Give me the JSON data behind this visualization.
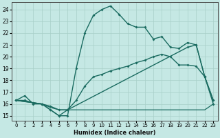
{
  "xlabel": "Humidex (Indice chaleur)",
  "xlim": [
    -0.5,
    23.5
  ],
  "ylim": [
    14.6,
    24.6
  ],
  "xticks": [
    0,
    1,
    2,
    3,
    4,
    5,
    6,
    7,
    8,
    9,
    10,
    11,
    12,
    13,
    14,
    15,
    16,
    17,
    18,
    19,
    20,
    21,
    22,
    23
  ],
  "yticks": [
    15,
    16,
    17,
    18,
    19,
    20,
    21,
    22,
    23,
    24
  ],
  "bg_color": "#c5e8e4",
  "grid_color": "#a8cfc8",
  "line_color": "#1a6b60",
  "series": [
    {
      "x": [
        0,
        1,
        2,
        3,
        4,
        5,
        6,
        7,
        8,
        9,
        10,
        11,
        12,
        13,
        14,
        15,
        16,
        17,
        18,
        19,
        20,
        21,
        22,
        23
      ],
      "y": [
        16.3,
        16.7,
        16.0,
        16.0,
        15.5,
        15.0,
        15.0,
        19.0,
        22.0,
        23.5,
        24.0,
        24.3,
        23.6,
        22.8,
        22.5,
        22.5,
        21.5,
        21.7,
        20.8,
        20.7,
        21.2,
        21.0,
        18.3,
        16.3
      ],
      "marker": true,
      "linewidth": 1.0
    },
    {
      "x": [
        0,
        1,
        2,
        3,
        4,
        5,
        6,
        7,
        8,
        9,
        10,
        11,
        12,
        13,
        14,
        15,
        16,
        17,
        18,
        19,
        20,
        21,
        22,
        23
      ],
      "y": [
        16.3,
        16.3,
        16.1,
        16.0,
        15.8,
        15.5,
        15.5,
        16.3,
        17.5,
        18.3,
        18.5,
        18.8,
        19.0,
        19.2,
        19.5,
        19.7,
        20.0,
        20.2,
        20.0,
        19.3,
        19.3,
        19.2,
        18.3,
        16.0
      ],
      "marker": true,
      "linewidth": 1.0
    },
    {
      "x": [
        0,
        3,
        4,
        5,
        6,
        20,
        21,
        22,
        23
      ],
      "y": [
        16.3,
        16.0,
        15.5,
        15.0,
        15.5,
        20.8,
        21.0,
        18.3,
        16.3
      ],
      "marker": true,
      "linewidth": 1.0
    },
    {
      "x": [
        0,
        3,
        4,
        5,
        6,
        7,
        8,
        9,
        10,
        11,
        12,
        13,
        14,
        15,
        16,
        17,
        18,
        19,
        20,
        21,
        22,
        23
      ],
      "y": [
        16.3,
        16.0,
        15.7,
        15.5,
        15.5,
        15.5,
        15.5,
        15.5,
        15.5,
        15.5,
        15.5,
        15.5,
        15.5,
        15.5,
        15.5,
        15.5,
        15.5,
        15.5,
        15.5,
        15.5,
        15.5,
        16.0
      ],
      "marker": false,
      "linewidth": 0.9
    }
  ]
}
